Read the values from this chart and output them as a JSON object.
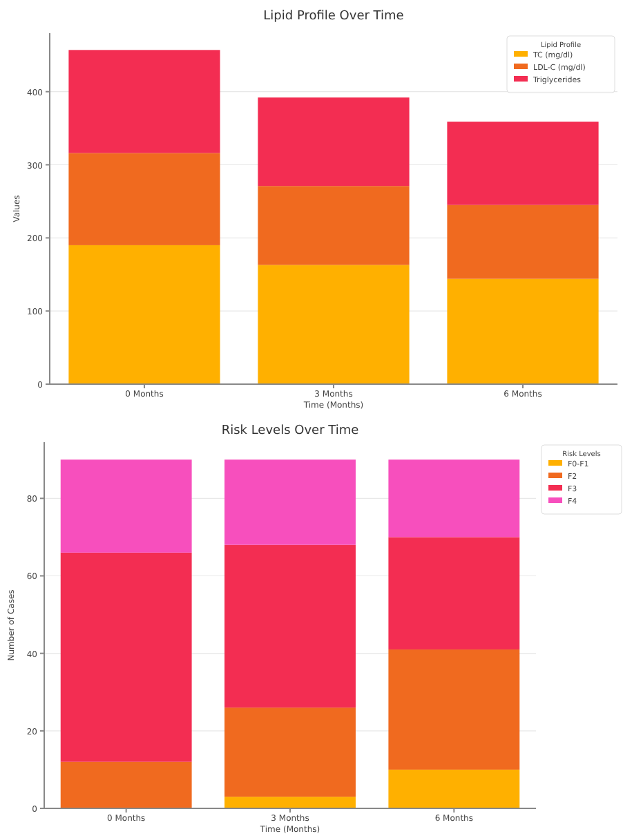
{
  "chart_data": [
    {
      "type": "bar",
      "title": "Lipid Profile Over Time",
      "xlabel": "Time (Months)",
      "ylabel": "Values",
      "legend_title": "Lipid Profile",
      "categories": [
        "0 Months",
        "3 Months",
        "6 Months"
      ],
      "stacked": true,
      "ylim": [
        0,
        480
      ],
      "yticks": [
        0,
        100,
        200,
        300,
        400
      ],
      "grid": "y",
      "legend": "top right",
      "series": [
        {
          "name": "TC (mg/dl)",
          "color": "#ffb000",
          "values": [
            190,
            163,
            144
          ]
        },
        {
          "name": "LDL-C (mg/dl)",
          "color": "#f06a1f",
          "values": [
            126,
            108,
            101
          ]
        },
        {
          "name": "Triglycerides",
          "color": "#f32d52",
          "values": [
            141,
            121,
            114
          ]
        }
      ]
    },
    {
      "type": "bar",
      "title": "Risk Levels Over Time",
      "xlabel": "Time (Months)",
      "ylabel": "Number of Cases",
      "legend_title": "Risk Levels",
      "categories": [
        "0 Months",
        "3 Months",
        "6 Months"
      ],
      "stacked": true,
      "ylim": [
        0,
        94.5
      ],
      "yticks": [
        0,
        20,
        40,
        60,
        80
      ],
      "grid": "y",
      "legend": "top right",
      "series": [
        {
          "name": "F0-F1",
          "color": "#ffb000",
          "values": [
            0,
            3,
            10
          ]
        },
        {
          "name": "F2",
          "color": "#f06a1f",
          "values": [
            12,
            23,
            31
          ]
        },
        {
          "name": "F3",
          "color": "#f32d52",
          "values": [
            54,
            42,
            29
          ]
        },
        {
          "name": "F4",
          "color": "#f74fbd",
          "values": [
            24,
            22,
            20
          ]
        }
      ]
    }
  ]
}
